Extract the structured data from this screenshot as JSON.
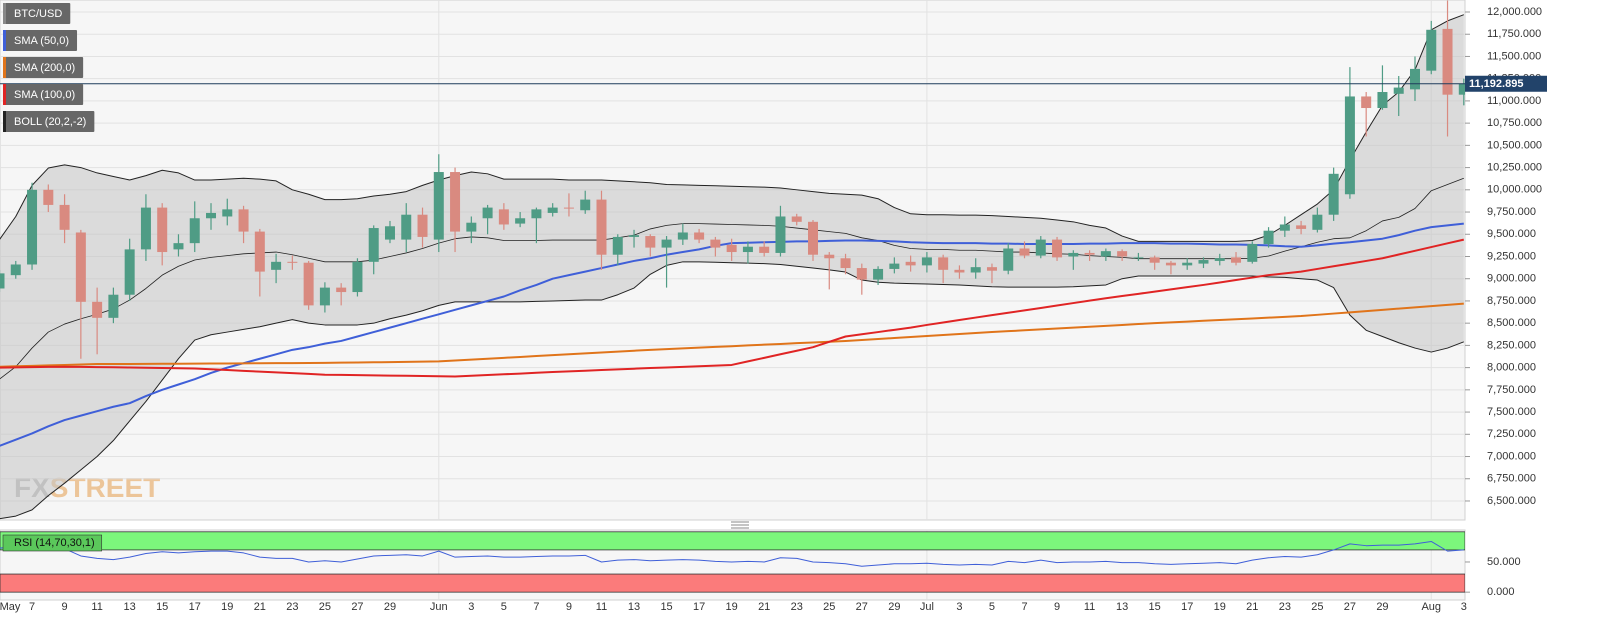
{
  "chart_data": {
    "type": "candlestick",
    "title": "BTC/USD",
    "up_color": "#4f9c85",
    "down_color": "#d98a80",
    "categories": [
      "May",
      null,
      "7",
      null,
      "9",
      null,
      "11",
      null,
      "13",
      null,
      "15",
      null,
      "17",
      null,
      "19",
      null,
      "21",
      null,
      "23",
      null,
      "25",
      null,
      "27",
      null,
      "29",
      null,
      null,
      "Jun",
      null,
      "3",
      null,
      "5",
      null,
      "7",
      null,
      "9",
      null,
      "11",
      null,
      "13",
      null,
      "15",
      null,
      "17",
      null,
      "19",
      null,
      "21",
      null,
      "23",
      null,
      "25",
      null,
      "27",
      null,
      "29",
      null,
      "Jul",
      null,
      "3",
      null,
      "5",
      null,
      "7",
      null,
      "9",
      null,
      "11",
      null,
      "13",
      null,
      "15",
      null,
      "17",
      null,
      "19",
      null,
      "21",
      null,
      "23",
      null,
      "25",
      null,
      "27",
      null,
      "29",
      null,
      null,
      "Aug",
      null,
      "3"
    ],
    "open": [
      8890,
      9040,
      9160,
      10000,
      9830,
      9520,
      8740,
      8560,
      8820,
      9330,
      9800,
      9330,
      9400,
      9680,
      9700,
      9780,
      9530,
      9100,
      9190,
      9180,
      8700,
      8900,
      8850,
      9190,
      9440,
      9440,
      9720,
      9440,
      10200,
      9530,
      9680,
      9780,
      9620,
      9680,
      9740,
      9800,
      9770,
      9890,
      9270,
      9470,
      9480,
      9350,
      9440,
      9520,
      9440,
      9380,
      9300,
      9360,
      9290,
      9700,
      9640,
      9270,
      9230,
      9120,
      8990,
      9110,
      9190,
      9150,
      9240,
      9100,
      9070,
      9130,
      9090,
      9340,
      9260,
      9440,
      9250,
      9290,
      9250,
      9310,
      9240,
      9240,
      9180,
      9150,
      9170,
      9200,
      9240,
      9190,
      9390,
      9540,
      9600,
      9550,
      9720,
      9950,
      11050,
      10920,
      11080,
      11130,
      11340,
      11810,
      11070
    ],
    "high": [
      9100,
      9200,
      10080,
      10060,
      9950,
      9550,
      8900,
      8900,
      9450,
      9950,
      9850,
      9500,
      9870,
      9850,
      9900,
      9820,
      9560,
      9280,
      9260,
      9200,
      8960,
      8950,
      9230,
      9600,
      9650,
      9850,
      9800,
      10400,
      10250,
      9700,
      9830,
      9850,
      9750,
      9800,
      9850,
      9960,
      9990,
      9990,
      9500,
      9550,
      9500,
      9480,
      9620,
      9560,
      9470,
      9450,
      9420,
      9420,
      9820,
      9730,
      9660,
      9300,
      9280,
      9170,
      9140,
      9240,
      9260,
      9300,
      9270,
      9150,
      9230,
      9170,
      9400,
      9420,
      9480,
      9470,
      9320,
      9320,
      9340,
      9330,
      9290,
      9260,
      9200,
      9230,
      9240,
      9280,
      9300,
      9420,
      9580,
      9700,
      9650,
      9800,
      10250,
      11380,
      11100,
      11400,
      11280,
      11500,
      11900,
      12130,
      11250
    ],
    "low": [
      8850,
      9000,
      9100,
      9750,
      9400,
      8100,
      8150,
      8500,
      8750,
      9200,
      9150,
      9250,
      9300,
      9550,
      9600,
      9400,
      8800,
      8950,
      9100,
      8650,
      8620,
      8700,
      8800,
      9050,
      9400,
      9300,
      9350,
      9300,
      9300,
      9400,
      9500,
      9550,
      9580,
      9400,
      9700,
      9700,
      9730,
      9100,
      9150,
      9350,
      9250,
      8900,
      9380,
      9400,
      9250,
      9200,
      9170,
      9250,
      9250,
      9600,
      9200,
      8880,
      9050,
      8820,
      8930,
      9060,
      9080,
      9070,
      8950,
      9000,
      9000,
      8950,
      9050,
      9230,
      9230,
      9200,
      9100,
      9200,
      9200,
      9200,
      9200,
      9100,
      9050,
      9100,
      9120,
      9150,
      9150,
      9170,
      9350,
      9470,
      9500,
      9520,
      9650,
      9900,
      10600,
      10900,
      10830,
      11000,
      11300,
      10600,
      10950
    ],
    "close": [
      9060,
      9160,
      10000,
      9830,
      9550,
      8740,
      8560,
      8820,
      9330,
      9800,
      9300,
      9400,
      9680,
      9740,
      9780,
      9530,
      9080,
      9190,
      9180,
      8700,
      8900,
      8850,
      9190,
      9570,
      9590,
      9720,
      9470,
      10200,
      9530,
      9630,
      9800,
      9610,
      9680,
      9780,
      9800,
      9790,
      9890,
      9270,
      9470,
      9490,
      9350,
      9440,
      9520,
      9440,
      9350,
      9300,
      9360,
      9290,
      9700,
      9640,
      9270,
      9230,
      9120,
      8990,
      9110,
      9170,
      9150,
      9240,
      9100,
      9070,
      9130,
      9090,
      9340,
      9260,
      9440,
      9240,
      9290,
      9270,
      9310,
      9250,
      9240,
      9180,
      9150,
      9180,
      9210,
      9230,
      9180,
      9390,
      9540,
      9610,
      9560,
      9720,
      10180,
      11050,
      10920,
      11100,
      11150,
      11360,
      11800,
      11070,
      11192.895
    ],
    "close_label": "11,192.895",
    "series": [
      {
        "name": "SMA (50,0)",
        "color": "#3f5fd8",
        "values": [
          7120,
          7190,
          7260,
          7340,
          7410,
          7460,
          7510,
          7560,
          7600,
          7680,
          7750,
          7810,
          7870,
          7940,
          8000,
          8050,
          8100,
          8150,
          8200,
          8230,
          8270,
          8300,
          8350,
          8400,
          8450,
          8500,
          8550,
          8600,
          8650,
          8700,
          8750,
          8800,
          8870,
          8930,
          9000,
          9040,
          9080,
          9120,
          9160,
          9200,
          9230,
          9270,
          9300,
          9330,
          9370,
          9400,
          9405,
          9410,
          9415,
          9420,
          9420,
          9425,
          9430,
          9430,
          9425,
          9420,
          9410,
          9405,
          9400,
          9400,
          9400,
          9395,
          9395,
          9390,
          9390,
          9390,
          9390,
          9395,
          9395,
          9400,
          9400,
          9400,
          9395,
          9395,
          9390,
          9385,
          9385,
          9380,
          9375,
          9365,
          9360,
          9375,
          9395,
          9410,
          9430,
          9450,
          9490,
          9540,
          9580,
          9600,
          9620
        ]
      },
      {
        "name": "SMA (200,0)",
        "color": "#e0741a",
        "values": [
          8010,
          8015,
          8020,
          8025,
          8030,
          8035,
          8040,
          8040,
          8040,
          8042,
          8043,
          8044,
          8045,
          8046,
          8047,
          8048,
          8049,
          8050,
          8050,
          8052,
          8054,
          8056,
          8058,
          8060,
          8062,
          8064,
          8067,
          8070,
          8080,
          8090,
          8100,
          8110,
          8120,
          8130,
          8140,
          8150,
          8160,
          8170,
          8180,
          8190,
          8200,
          8208,
          8216,
          8225,
          8233,
          8241,
          8250,
          8258,
          8266,
          8275,
          8283,
          8291,
          8300,
          8311,
          8322,
          8333,
          8344,
          8356,
          8367,
          8378,
          8389,
          8400,
          8410,
          8420,
          8430,
          8440,
          8450,
          8460,
          8470,
          8480,
          8490,
          8500,
          8509,
          8518,
          8527,
          8536,
          8544,
          8553,
          8562,
          8571,
          8580,
          8594,
          8608,
          8622,
          8636,
          8650,
          8664,
          8678,
          8692,
          8706,
          8720
        ]
      },
      {
        "name": "SMA (100,0)",
        "color": "#e02424",
        "values": [
          8000,
          8003,
          8005,
          8008,
          8010,
          8008,
          8006,
          8004,
          8001,
          7998,
          7996,
          7993,
          7990,
          7981,
          7973,
          7964,
          7955,
          7946,
          7938,
          7929,
          7920,
          7918,
          7915,
          7913,
          7910,
          7908,
          7905,
          7903,
          7900,
          7908,
          7917,
          7925,
          7933,
          7942,
          7950,
          7958,
          7965,
          7973,
          7980,
          7988,
          7995,
          8002,
          8009,
          8016,
          8023,
          8030,
          8070,
          8110,
          8150,
          8190,
          8230,
          8290,
          8350,
          8375,
          8400,
          8425,
          8450,
          8480,
          8508,
          8535,
          8563,
          8590,
          8617,
          8644,
          8671,
          8699,
          8726,
          8753,
          8780,
          8805,
          8830,
          8855,
          8880,
          8905,
          8930,
          8958,
          8985,
          9013,
          9040,
          9060,
          9080,
          9110,
          9140,
          9170,
          9200,
          9230,
          9272,
          9314,
          9356,
          9398,
          9440
        ]
      },
      {
        "name": "BOLL (20,2,-2)",
        "color": "#222222",
        "upper": [
          9440,
          9700,
          10050,
          10245,
          10280,
          10250,
          10190,
          10150,
          10110,
          10160,
          10220,
          10190,
          10110,
          10110,
          10120,
          10130,
          10120,
          10100,
          10000,
          9950,
          9890,
          9890,
          9900,
          9930,
          9950,
          9980,
          10050,
          10110,
          10160,
          10200,
          10180,
          10120,
          10120,
          10120,
          10120,
          10110,
          10110,
          10110,
          10100,
          10090,
          10080,
          10060,
          10055,
          10050,
          10045,
          10040,
          10035,
          10030,
          10020,
          10000,
          9980,
          9960,
          9950,
          9940,
          9900,
          9800,
          9730,
          9720,
          9720,
          9715,
          9715,
          9710,
          9700,
          9690,
          9680,
          9660,
          9640,
          9600,
          9570,
          9480,
          9420,
          9420,
          9420,
          9420,
          9420,
          9420,
          9420,
          9430,
          9490,
          9600,
          9720,
          9840,
          10000,
          10335,
          10650,
          10950,
          11100,
          11350,
          11800,
          11900,
          11970
        ],
        "middle": [
          7870,
          8010,
          8220,
          8400,
          8490,
          8550,
          8600,
          8660,
          8760,
          8890,
          9040,
          9140,
          9210,
          9240,
          9260,
          9280,
          9290,
          9300,
          9270,
          9230,
          9190,
          9190,
          9190,
          9210,
          9250,
          9290,
          9340,
          9400,
          9450,
          9470,
          9460,
          9430,
          9430,
          9430,
          9435,
          9435,
          9435,
          9435,
          9460,
          9490,
          9560,
          9600,
          9620,
          9620,
          9615,
          9610,
          9605,
          9600,
          9590,
          9570,
          9550,
          9530,
          9510,
          9460,
          9430,
          9375,
          9340,
          9330,
          9330,
          9320,
          9320,
          9310,
          9300,
          9300,
          9290,
          9280,
          9275,
          9260,
          9250,
          9240,
          9225,
          9225,
          9225,
          9225,
          9225,
          9225,
          9225,
          9230,
          9255,
          9310,
          9360,
          9410,
          9450,
          9460,
          9540,
          9650,
          9690,
          9790,
          9990,
          10060,
          10130
        ],
        "lower": [
          6300,
          6330,
          6400,
          6560,
          6700,
          6850,
          7000,
          7180,
          7400,
          7620,
          7860,
          8100,
          8310,
          8370,
          8400,
          8430,
          8460,
          8500,
          8540,
          8500,
          8480,
          8480,
          8480,
          8500,
          8550,
          8590,
          8640,
          8700,
          8740,
          8740,
          8740,
          8740,
          8740,
          8745,
          8750,
          8755,
          8760,
          8760,
          8820,
          8895,
          9050,
          9150,
          9190,
          9190,
          9185,
          9180,
          9175,
          9170,
          9160,
          9140,
          9120,
          9100,
          9075,
          8985,
          8960,
          8950,
          8945,
          8940,
          8935,
          8930,
          8920,
          8910,
          8905,
          8905,
          8905,
          8905,
          8910,
          8920,
          8930,
          9000,
          9030,
          9030,
          9030,
          9030,
          9030,
          9030,
          9030,
          9030,
          9020,
          9015,
          9000,
          8985,
          8900,
          8590,
          8420,
          8350,
          8280,
          8220,
          8175,
          8220,
          8290
        ]
      }
    ],
    "ylim": [
      6286,
      12135
    ],
    "yticks": [
      {
        "value": 6500,
        "label": "6,500.000"
      },
      {
        "value": 6750,
        "label": "6,750.000"
      },
      {
        "value": 7000,
        "label": "7,000.000"
      },
      {
        "value": 7250,
        "label": "7,250.000"
      },
      {
        "value": 7500,
        "label": "7,500.000"
      },
      {
        "value": 7750,
        "label": "7,750.000"
      },
      {
        "value": 8000,
        "label": "8,000.000"
      },
      {
        "value": 8250,
        "label": "8,250.000"
      },
      {
        "value": 8500,
        "label": "8,500.000"
      },
      {
        "value": 8750,
        "label": "8,750.000"
      },
      {
        "value": 9000,
        "label": "9,000.000"
      },
      {
        "value": 9250,
        "label": "9,250.000"
      },
      {
        "value": 9500,
        "label": "9,500.000"
      },
      {
        "value": 9750,
        "label": "9,750.000"
      },
      {
        "value": 10000,
        "label": "10,000.000"
      },
      {
        "value": 10250,
        "label": "10,250.000"
      },
      {
        "value": 10500,
        "label": "10,500.000"
      },
      {
        "value": 10750,
        "label": "10,750.000"
      },
      {
        "value": 11000,
        "label": "11,000.000"
      },
      {
        "value": 11250,
        "label": "11,250.000"
      },
      {
        "value": 11500,
        "label": "11,500.000"
      },
      {
        "value": 11750,
        "label": "11,750.000"
      },
      {
        "value": 12000,
        "label": "12,000.000"
      }
    ],
    "grid": true,
    "watermark": [
      "FX",
      "STREET"
    ],
    "rsi": {
      "name": "RSI (14,70,30,1)",
      "color": "#3f5fd8",
      "values": [
        73,
        75,
        78,
        78,
        72,
        60,
        56,
        54,
        58,
        64,
        67,
        65,
        67,
        68,
        68,
        65,
        58,
        56,
        56,
        50,
        52,
        50,
        55,
        60,
        61,
        62,
        60,
        68,
        58,
        59,
        60,
        58,
        58,
        59,
        60,
        60,
        61,
        50,
        53,
        54,
        52,
        53,
        54,
        53,
        51,
        50,
        51,
        50,
        57,
        56,
        50,
        49,
        47,
        43,
        45,
        47,
        47,
        48,
        46,
        45,
        46,
        45,
        51,
        49,
        53,
        49,
        50,
        50,
        51,
        49,
        49,
        47,
        46,
        47,
        48,
        49,
        47,
        53,
        57,
        59,
        58,
        62,
        70,
        80,
        77,
        78,
        78,
        80,
        84,
        68,
        70
      ],
      "ylim": [
        -13,
        103
      ],
      "yticks": [
        {
          "value": 50,
          "label": "50.000"
        },
        {
          "value": 0,
          "label": "0.000"
        }
      ],
      "bands": [
        {
          "from": 70,
          "to": 100,
          "color": "#7cf77c"
        },
        {
          "from": 0,
          "to": 30,
          "color": "#fb7b7b"
        }
      ]
    }
  }
}
